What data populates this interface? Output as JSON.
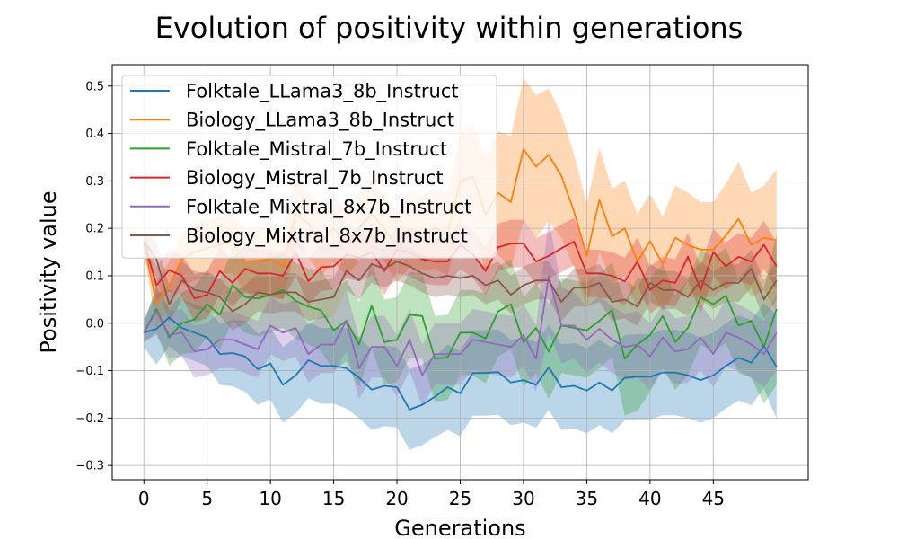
{
  "chart_data": {
    "type": "line",
    "title": "Evolution of positivity within generations",
    "xlabel": "Generations",
    "ylabel": "Positivity value",
    "xlim": [
      -2.5,
      52.5
    ],
    "ylim": [
      -0.33,
      0.545
    ],
    "xticks": [
      0,
      5,
      10,
      15,
      20,
      25,
      30,
      35,
      40,
      45
    ],
    "yticks": [
      -0.3,
      -0.2,
      -0.1,
      0.0,
      0.1,
      0.2,
      0.3,
      0.4,
      0.5
    ],
    "yticklabels": [
      "−0.3",
      "−0.2",
      "−0.1",
      "0.0",
      "0.1",
      "0.2",
      "0.3",
      "0.4",
      "0.5"
    ],
    "grid": true,
    "legend_position": "top-left",
    "x": [
      0,
      1,
      2,
      3,
      4,
      5,
      6,
      7,
      8,
      9,
      10,
      11,
      12,
      13,
      14,
      15,
      16,
      17,
      18,
      19,
      20,
      21,
      22,
      23,
      24,
      25,
      26,
      27,
      28,
      29,
      30,
      31,
      32,
      33,
      34,
      35,
      36,
      37,
      38,
      39,
      40,
      41,
      42,
      43,
      44,
      45,
      46,
      47,
      48,
      49,
      50
    ],
    "series": [
      {
        "name": "Folktale_LLama3_8b_Instruct",
        "color": "#1f77b4",
        "values": [
          -0.02,
          -0.012,
          0.012,
          -0.01,
          -0.02,
          -0.03,
          -0.065,
          -0.063,
          -0.07,
          -0.097,
          -0.085,
          -0.13,
          -0.11,
          -0.078,
          -0.09,
          -0.09,
          -0.095,
          -0.115,
          -0.14,
          -0.132,
          -0.135,
          -0.182,
          -0.172,
          -0.155,
          -0.135,
          -0.148,
          -0.105,
          -0.105,
          -0.103,
          -0.125,
          -0.12,
          -0.13,
          -0.093,
          -0.135,
          -0.132,
          -0.142,
          -0.125,
          -0.142,
          -0.115,
          -0.113,
          -0.113,
          -0.104,
          -0.104,
          -0.11,
          -0.12,
          -0.11,
          -0.09,
          -0.073,
          -0.083,
          -0.048,
          -0.092
        ],
        "band": [
          0.03,
          0.075,
          0.06,
          0.06,
          0.06,
          0.06,
          0.065,
          0.07,
          0.075,
          0.075,
          0.075,
          0.08,
          0.08,
          0.08,
          0.08,
          0.08,
          0.085,
          0.085,
          0.085,
          0.085,
          0.085,
          0.085,
          0.085,
          0.085,
          0.09,
          0.09,
          0.09,
          0.09,
          0.09,
          0.09,
          0.09,
          0.09,
          0.09,
          0.09,
          0.09,
          0.09,
          0.09,
          0.09,
          0.09,
          0.09,
          0.09,
          0.09,
          0.09,
          0.09,
          0.09,
          0.09,
          0.09,
          0.09,
          0.09,
          0.09,
          0.11
        ]
      },
      {
        "name": "Biology_LLama3_8b_Instruct",
        "color": "#ff7f0e",
        "values": [
          0.172,
          0.04,
          0.08,
          0.135,
          0.15,
          0.158,
          0.165,
          0.17,
          0.13,
          0.132,
          0.135,
          0.12,
          0.23,
          0.21,
          0.17,
          0.2,
          0.17,
          0.2,
          0.23,
          0.2,
          0.16,
          0.2,
          0.19,
          0.2,
          0.19,
          0.3,
          0.31,
          0.23,
          0.275,
          0.255,
          0.367,
          0.33,
          0.355,
          0.31,
          0.235,
          0.142,
          0.26,
          0.183,
          0.2,
          0.13,
          0.173,
          0.125,
          0.18,
          0.165,
          0.155,
          0.155,
          0.185,
          0.22,
          0.165,
          0.18,
          0.175
        ],
        "band": [
          0.02,
          0.05,
          0.05,
          0.055,
          0.06,
          0.06,
          0.06,
          0.065,
          0.065,
          0.07,
          0.07,
          0.07,
          0.07,
          0.07,
          0.07,
          0.07,
          0.07,
          0.07,
          0.07,
          0.07,
          0.075,
          0.08,
          0.08,
          0.085,
          0.09,
          0.1,
          0.11,
          0.12,
          0.13,
          0.14,
          0.15,
          0.15,
          0.14,
          0.13,
          0.12,
          0.11,
          0.11,
          0.1,
          0.1,
          0.1,
          0.1,
          0.1,
          0.11,
          0.11,
          0.1,
          0.1,
          0.11,
          0.12,
          0.11,
          0.11,
          0.15
        ]
      },
      {
        "name": "Folktale_Mistral_7b_Instruct",
        "color": "#2ca02c",
        "values": [
          -0.02,
          0.03,
          -0.03,
          0.0,
          0.008,
          0.04,
          0.018,
          0.08,
          0.055,
          0.052,
          0.06,
          0.07,
          0.047,
          0.035,
          0.027,
          -0.015,
          0.005,
          -0.045,
          0.037,
          -0.04,
          -0.035,
          0.018,
          0.015,
          -0.075,
          -0.072,
          -0.02,
          -0.02,
          -0.032,
          0.025,
          0.04,
          -0.04,
          -0.01,
          -0.06,
          -0.005,
          -0.01,
          -0.015,
          0.005,
          0.028,
          -0.075,
          -0.045,
          -0.025,
          0.015,
          -0.04,
          -0.01,
          0.055,
          0.04,
          0.058,
          -0.005,
          0.005,
          -0.05,
          0.03
        ],
        "band": [
          0.02,
          0.05,
          0.06,
          0.065,
          0.07,
          0.07,
          0.075,
          0.075,
          0.075,
          0.08,
          0.08,
          0.08,
          0.08,
          0.08,
          0.085,
          0.085,
          0.085,
          0.09,
          0.09,
          0.09,
          0.09,
          0.09,
          0.09,
          0.09,
          0.09,
          0.09,
          0.09,
          0.095,
          0.095,
          0.095,
          0.095,
          0.095,
          0.1,
          0.1,
          0.1,
          0.1,
          0.1,
          0.1,
          0.12,
          0.14,
          0.12,
          0.11,
          0.1,
          0.1,
          0.1,
          0.1,
          0.1,
          0.1,
          0.12,
          0.12,
          0.16
        ]
      },
      {
        "name": "Biology_Mistral_7b_Instruct",
        "color": "#d62728",
        "values": [
          0.172,
          0.08,
          0.112,
          0.1,
          0.052,
          0.06,
          0.11,
          0.085,
          0.115,
          0.105,
          0.105,
          0.1,
          0.15,
          0.088,
          0.118,
          0.12,
          0.145,
          0.138,
          0.15,
          0.11,
          0.155,
          0.15,
          0.135,
          0.13,
          0.13,
          0.165,
          0.145,
          0.11,
          0.16,
          0.168,
          0.168,
          0.13,
          0.142,
          0.158,
          0.172,
          0.105,
          0.105,
          0.1,
          0.088,
          0.13,
          0.07,
          0.09,
          0.085,
          0.14,
          0.07,
          0.15,
          0.12,
          0.14,
          0.13,
          0.165,
          0.12
        ],
        "band": [
          0.02,
          0.04,
          0.045,
          0.045,
          0.05,
          0.05,
          0.05,
          0.05,
          0.05,
          0.05,
          0.05,
          0.05,
          0.05,
          0.05,
          0.05,
          0.05,
          0.05,
          0.05,
          0.05,
          0.05,
          0.05,
          0.05,
          0.05,
          0.05,
          0.05,
          0.05,
          0.05,
          0.05,
          0.05,
          0.05,
          0.05,
          0.05,
          0.05,
          0.05,
          0.05,
          0.05,
          0.05,
          0.05,
          0.05,
          0.05,
          0.05,
          0.05,
          0.05,
          0.05,
          0.05,
          0.05,
          0.05,
          0.05,
          0.05,
          0.05,
          0.05
        ]
      },
      {
        "name": "Folktale_Mixtral_8x7b_Instruct",
        "color": "#9467bd",
        "values": [
          -0.02,
          0.025,
          -0.025,
          -0.02,
          -0.06,
          -0.055,
          -0.035,
          -0.035,
          -0.045,
          -0.055,
          -0.005,
          -0.02,
          -0.01,
          -0.065,
          -0.045,
          -0.045,
          0.005,
          -0.095,
          -0.05,
          -0.05,
          -0.09,
          -0.035,
          -0.11,
          -0.065,
          -0.065,
          -0.065,
          -0.035,
          -0.04,
          -0.045,
          -0.05,
          -0.025,
          -0.075,
          0.1,
          -0.005,
          -0.005,
          -0.035,
          -0.012,
          -0.035,
          -0.05,
          -0.045,
          -0.07,
          -0.03,
          -0.06,
          -0.055,
          -0.03,
          -0.065,
          -0.02,
          -0.03,
          -0.045,
          -0.065,
          -0.02
        ],
        "band": [
          0.02,
          0.05,
          0.05,
          0.05,
          0.055,
          0.055,
          0.06,
          0.06,
          0.06,
          0.06,
          0.06,
          0.06,
          0.06,
          0.06,
          0.06,
          0.06,
          0.065,
          0.065,
          0.065,
          0.065,
          0.065,
          0.065,
          0.065,
          0.065,
          0.065,
          0.065,
          0.065,
          0.065,
          0.065,
          0.065,
          0.065,
          0.07,
          0.12,
          0.08,
          0.07,
          0.07,
          0.07,
          0.07,
          0.07,
          0.07,
          0.07,
          0.07,
          0.07,
          0.07,
          0.07,
          0.07,
          0.07,
          0.07,
          0.07,
          0.07,
          0.08
        ]
      },
      {
        "name": "Biology_Mixtral_8x7b_Instruct",
        "color": "#8c564b",
        "values": [
          0.172,
          0.135,
          0.04,
          0.09,
          0.07,
          0.065,
          0.055,
          0.025,
          0.04,
          0.065,
          0.06,
          0.065,
          0.065,
          0.045,
          0.05,
          0.055,
          0.11,
          0.09,
          0.125,
          0.115,
          0.13,
          0.12,
          0.105,
          0.095,
          0.1,
          0.095,
          0.1,
          0.08,
          0.09,
          0.06,
          0.08,
          0.09,
          0.09,
          0.045,
          0.075,
          0.075,
          0.085,
          0.045,
          0.05,
          0.035,
          0.085,
          0.07,
          0.07,
          0.055,
          0.09,
          0.07,
          0.085,
          0.085,
          0.115,
          0.05,
          0.09
        ],
        "band": [
          0.02,
          0.04,
          0.04,
          0.04,
          0.04,
          0.04,
          0.04,
          0.04,
          0.04,
          0.04,
          0.04,
          0.04,
          0.04,
          0.04,
          0.04,
          0.04,
          0.04,
          0.04,
          0.04,
          0.04,
          0.04,
          0.04,
          0.04,
          0.04,
          0.04,
          0.04,
          0.04,
          0.04,
          0.04,
          0.04,
          0.04,
          0.04,
          0.04,
          0.04,
          0.04,
          0.04,
          0.04,
          0.04,
          0.04,
          0.04,
          0.04,
          0.04,
          0.04,
          0.04,
          0.04,
          0.04,
          0.04,
          0.04,
          0.04,
          0.04,
          0.04
        ]
      }
    ]
  }
}
